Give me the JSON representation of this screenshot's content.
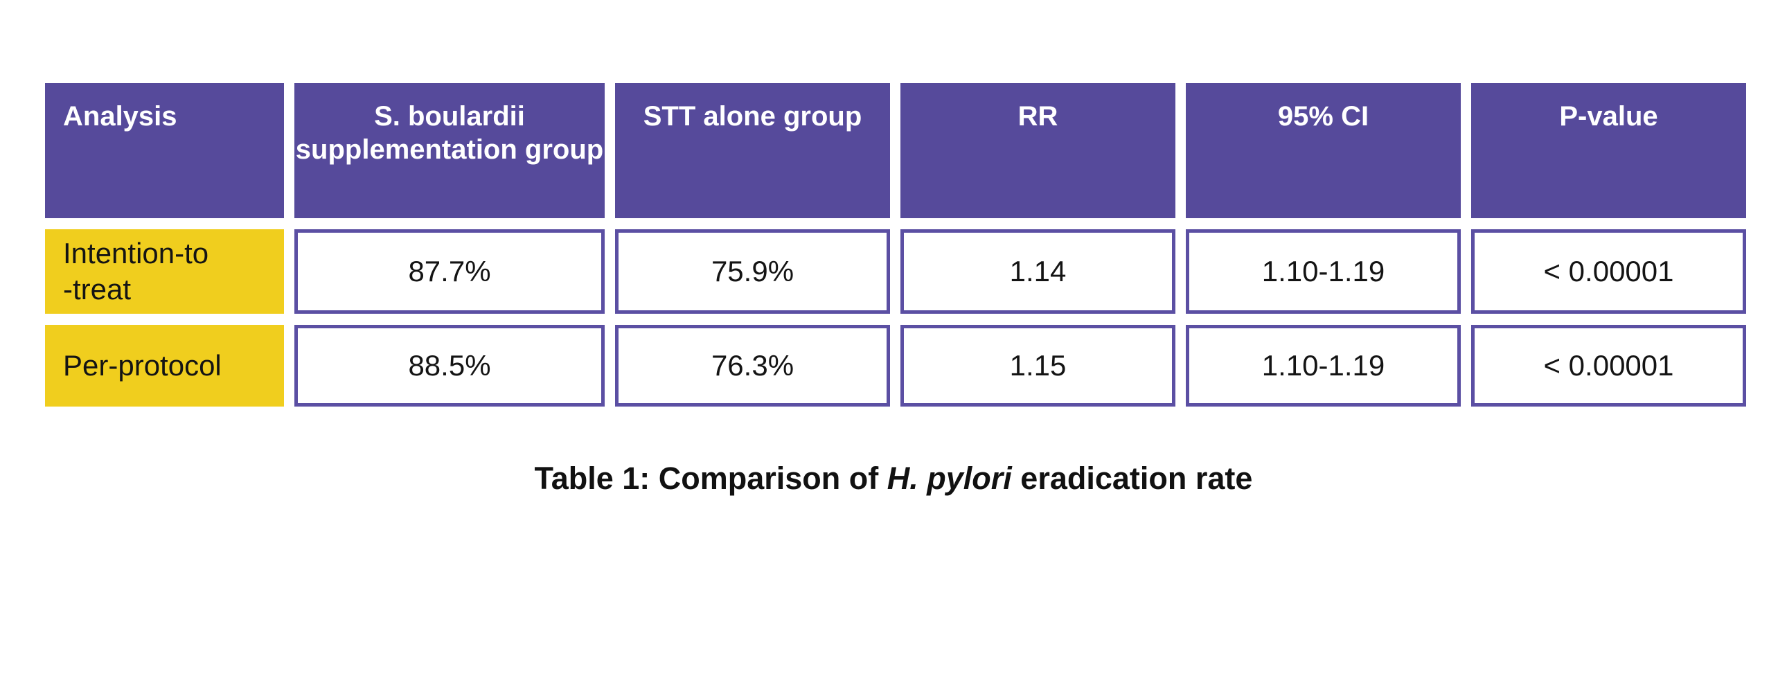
{
  "chart_data": {
    "type": "table",
    "title": "Table 1: Comparison of H. pylori eradication rate",
    "columns": [
      "Analysis",
      "S. boulardii supplementation group",
      "STT alone group",
      "RR",
      "95% CI",
      "P-value"
    ],
    "rows": [
      {
        "label": "Intention-to\n-treat",
        "values": [
          "87.7%",
          "75.9%",
          "1.14",
          "1.10-1.19",
          "< 0.00001"
        ]
      },
      {
        "label": "Per-protocol",
        "values": [
          "88.5%",
          "76.3%",
          "1.15",
          "1.10-1.19",
          "< 0.00001"
        ]
      }
    ],
    "layout": {
      "header_position": "top",
      "header_text_align": "center-except-first-left",
      "first_column_role": "row-labels",
      "grid": "separated-cells-on-white-gutters"
    }
  },
  "caption": {
    "prefix": "Table 1: Comparison of ",
    "italic_term": "H. pylori",
    "suffix": " eradication rate"
  },
  "colors": {
    "header_bg": "#564A9B",
    "header_text": "#FFFFFF",
    "row_label_bg": "#F0CE1E",
    "cell_border": "#5B4FA3",
    "body_text": "#141414",
    "background": "#FFFFFF"
  }
}
